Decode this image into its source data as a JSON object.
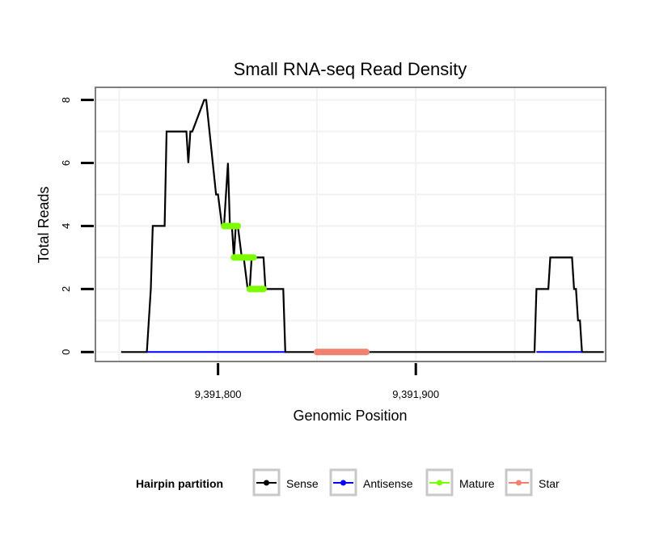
{
  "chart_data": {
    "type": "line",
    "title": "Small RNA-seq Read Density",
    "xlabel": "Genomic Position",
    "ylabel": "Total Reads",
    "xlim": [
      9391738,
      9391996
    ],
    "ylim": [
      -0.3,
      8.4
    ],
    "x_ticks": [
      {
        "value": 9391800,
        "label": "9,391,800"
      },
      {
        "value": 9391900,
        "label": "9,391,900"
      }
    ],
    "y_ticks": [
      {
        "value": 0,
        "label": "0"
      },
      {
        "value": 2,
        "label": "2"
      },
      {
        "value": 4,
        "label": "4"
      },
      {
        "value": 6,
        "label": "6"
      },
      {
        "value": 8,
        "label": "8"
      }
    ],
    "grid": true,
    "legend": {
      "title": "Hairpin partition",
      "position": "bottom",
      "entries": [
        {
          "name": "Sense",
          "color": "#000000"
        },
        {
          "name": "Antisense",
          "color": "#0000ff"
        },
        {
          "name": "Mature",
          "color": "#7cfc00"
        },
        {
          "name": "Star",
          "color": "#f08070"
        }
      ]
    },
    "series": [
      {
        "name": "Sense",
        "color": "#000000",
        "x": [
          9391751,
          9391764,
          9391766,
          9391767,
          9391773,
          9391774,
          9391784,
          9391785,
          9391786,
          9391787,
          9391793,
          9391794,
          9391799,
          9391800,
          9391802,
          9391803,
          9391805,
          9391806,
          9391807,
          9391808,
          9391809,
          9391810,
          9391812,
          9391813,
          9391815,
          9391816,
          9391817,
          9391823,
          9391824,
          9391833,
          9391834,
          9391960,
          9391961,
          9391967,
          9391968,
          9391979,
          9391980,
          9391981,
          9391982,
          9391983,
          9391984,
          9391985,
          9391995
        ],
        "y": [
          0,
          0,
          2,
          4,
          4,
          7,
          7,
          6,
          7,
          7,
          8,
          8,
          5,
          5,
          4,
          4,
          6,
          4,
          4,
          3,
          4,
          4,
          3,
          3,
          2,
          2,
          3,
          3,
          2,
          2,
          0,
          0,
          2,
          2,
          3,
          3,
          2,
          2,
          1,
          1,
          0,
          0,
          0
        ]
      },
      {
        "name": "Antisense",
        "color": "#0000ff",
        "segments": [
          [
            9391764,
            9391834,
            0
          ],
          [
            9391961,
            9391984,
            0
          ]
        ]
      },
      {
        "name": "Mature",
        "color": "#7cfc00",
        "segments": [
          [
            9391803,
            9391810,
            4
          ],
          [
            9391808,
            9391818,
            3
          ],
          [
            9391816,
            9391823,
            2
          ]
        ]
      },
      {
        "name": "Star",
        "color": "#f08070",
        "segments": [
          [
            9391850,
            9391875,
            0
          ]
        ]
      }
    ]
  }
}
